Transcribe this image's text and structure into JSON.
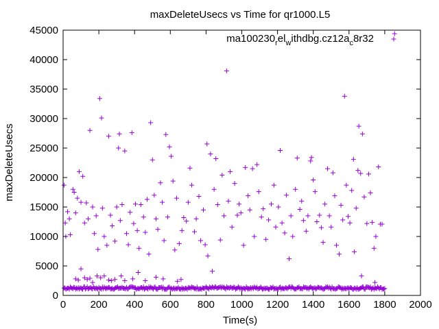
{
  "colors": {
    "series": "#9400d3",
    "axis": "#000000",
    "background": "#ffffff"
  },
  "chart_data": {
    "type": "scatter",
    "title": "maxDeleteUsecs vs Time for qr1000.L5",
    "xlabel": "Time(s)",
    "ylabel": "maxDeleteUsecs",
    "xlim": [
      0,
      2000
    ],
    "ylim": [
      0,
      45000
    ],
    "x_ticks": [
      "0",
      "200",
      "400",
      "600",
      "800",
      "1000",
      "1200",
      "1400",
      "1600",
      "1800",
      "2000"
    ],
    "y_ticks": [
      "0",
      "5000",
      "10000",
      "15000",
      "20000",
      "25000",
      "30000",
      "35000",
      "40000",
      "45000"
    ],
    "grid": false,
    "legend_position": "top-right",
    "series": [
      {
        "name": "ma100230_rel_withdbg.cz12a_c8r32",
        "name_parts": {
          "base1": "ma100230",
          "sub1": "r",
          "mid": "el",
          "sup1": "w",
          "mid2": "ithdbg.cz12a",
          "sub2": "c",
          "end": "8r32"
        },
        "marker": "+",
        "baseline": {
          "x_start": 5,
          "x_end": 1800,
          "x_step": 5,
          "y_base": 1250,
          "y_range": 450
        },
        "points": [
          {
            "x": 5,
            "y": 18700
          },
          {
            "x": 12,
            "y": 12300
          },
          {
            "x": 15,
            "y": 10000
          },
          {
            "x": 25,
            "y": 14200
          },
          {
            "x": 35,
            "y": 13000
          },
          {
            "x": 40,
            "y": 10300
          },
          {
            "x": 55,
            "y": 18000
          },
          {
            "x": 62,
            "y": 17500
          },
          {
            "x": 70,
            "y": 14000
          },
          {
            "x": 80,
            "y": 16500
          },
          {
            "x": 90,
            "y": 21000
          },
          {
            "x": 100,
            "y": 15800
          },
          {
            "x": 110,
            "y": 20200
          },
          {
            "x": 120,
            "y": 12300
          },
          {
            "x": 130,
            "y": 15700
          },
          {
            "x": 140,
            "y": 13000
          },
          {
            "x": 150,
            "y": 28000
          },
          {
            "x": 165,
            "y": 15000
          },
          {
            "x": 175,
            "y": 10500
          },
          {
            "x": 185,
            "y": 13500
          },
          {
            "x": 195,
            "y": 7800
          },
          {
            "x": 205,
            "y": 33400
          },
          {
            "x": 215,
            "y": 30100
          },
          {
            "x": 220,
            "y": 14800
          },
          {
            "x": 230,
            "y": 10000
          },
          {
            "x": 245,
            "y": 8500
          },
          {
            "x": 255,
            "y": 27000
          },
          {
            "x": 265,
            "y": 13600
          },
          {
            "x": 275,
            "y": 11800
          },
          {
            "x": 290,
            "y": 9200
          },
          {
            "x": 300,
            "y": 15000
          },
          {
            "x": 310,
            "y": 25000
          },
          {
            "x": 315,
            "y": 27400
          },
          {
            "x": 320,
            "y": 12700
          },
          {
            "x": 330,
            "y": 15400
          },
          {
            "x": 345,
            "y": 24500
          },
          {
            "x": 355,
            "y": 10500
          },
          {
            "x": 365,
            "y": 8600
          },
          {
            "x": 375,
            "y": 14100
          },
          {
            "x": 385,
            "y": 27600
          },
          {
            "x": 395,
            "y": 12200
          },
          {
            "x": 405,
            "y": 15500
          },
          {
            "x": 415,
            "y": 11000
          },
          {
            "x": 425,
            "y": 8000
          },
          {
            "x": 435,
            "y": 15400
          },
          {
            "x": 450,
            "y": 13300
          },
          {
            "x": 460,
            "y": 10700
          },
          {
            "x": 470,
            "y": 16300
          },
          {
            "x": 480,
            "y": 7000
          },
          {
            "x": 490,
            "y": 29300
          },
          {
            "x": 500,
            "y": 23000
          },
          {
            "x": 510,
            "y": 17000
          },
          {
            "x": 520,
            "y": 13000
          },
          {
            "x": 530,
            "y": 11200
          },
          {
            "x": 545,
            "y": 19100
          },
          {
            "x": 555,
            "y": 15800
          },
          {
            "x": 565,
            "y": 9300
          },
          {
            "x": 575,
            "y": 27300
          },
          {
            "x": 585,
            "y": 13300
          },
          {
            "x": 595,
            "y": 25200
          },
          {
            "x": 605,
            "y": 23600
          },
          {
            "x": 615,
            "y": 19400
          },
          {
            "x": 625,
            "y": 7700
          },
          {
            "x": 635,
            "y": 16500
          },
          {
            "x": 650,
            "y": 8800
          },
          {
            "x": 665,
            "y": 11000
          },
          {
            "x": 675,
            "y": 13200
          },
          {
            "x": 690,
            "y": 12600
          },
          {
            "x": 700,
            "y": 15800
          },
          {
            "x": 710,
            "y": 21600
          },
          {
            "x": 720,
            "y": 18700
          },
          {
            "x": 735,
            "y": 10800
          },
          {
            "x": 745,
            "y": 13000
          },
          {
            "x": 760,
            "y": 16800
          },
          {
            "x": 770,
            "y": 9300
          },
          {
            "x": 785,
            "y": 14500
          },
          {
            "x": 795,
            "y": 8600
          },
          {
            "x": 805,
            "y": 25700
          },
          {
            "x": 810,
            "y": 6700
          },
          {
            "x": 825,
            "y": 24000
          },
          {
            "x": 835,
            "y": 4100
          },
          {
            "x": 845,
            "y": 18000
          },
          {
            "x": 855,
            "y": 23200
          },
          {
            "x": 865,
            "y": 15400
          },
          {
            "x": 880,
            "y": 9400
          },
          {
            "x": 890,
            "y": 20400
          },
          {
            "x": 900,
            "y": 13500
          },
          {
            "x": 915,
            "y": 38100
          },
          {
            "x": 925,
            "y": 16000
          },
          {
            "x": 935,
            "y": 21000
          },
          {
            "x": 945,
            "y": 11600
          },
          {
            "x": 960,
            "y": 19000
          },
          {
            "x": 975,
            "y": 13600
          },
          {
            "x": 985,
            "y": 15500
          },
          {
            "x": 995,
            "y": 14000
          },
          {
            "x": 1010,
            "y": 8500
          },
          {
            "x": 1020,
            "y": 21700
          },
          {
            "x": 1035,
            "y": 16900
          },
          {
            "x": 1045,
            "y": 14500
          },
          {
            "x": 1060,
            "y": 21500
          },
          {
            "x": 1070,
            "y": 10000
          },
          {
            "x": 1085,
            "y": 22200
          },
          {
            "x": 1095,
            "y": 17600
          },
          {
            "x": 1110,
            "y": 13300
          },
          {
            "x": 1120,
            "y": 14700
          },
          {
            "x": 1135,
            "y": 9500
          },
          {
            "x": 1150,
            "y": 12800
          },
          {
            "x": 1165,
            "y": 15500
          },
          {
            "x": 1180,
            "y": 18700
          },
          {
            "x": 1190,
            "y": 11600
          },
          {
            "x": 1205,
            "y": 15000
          },
          {
            "x": 1215,
            "y": 24600
          },
          {
            "x": 1225,
            "y": 12300
          },
          {
            "x": 1240,
            "y": 10600
          },
          {
            "x": 1250,
            "y": 17000
          },
          {
            "x": 1265,
            "y": 6200
          },
          {
            "x": 1275,
            "y": 13500
          },
          {
            "x": 1285,
            "y": 10000
          },
          {
            "x": 1300,
            "y": 18000
          },
          {
            "x": 1310,
            "y": 23300
          },
          {
            "x": 1325,
            "y": 14600
          },
          {
            "x": 1335,
            "y": 16000
          },
          {
            "x": 1345,
            "y": 12700
          },
          {
            "x": 1360,
            "y": 10900
          },
          {
            "x": 1370,
            "y": 13500
          },
          {
            "x": 1385,
            "y": 22800
          },
          {
            "x": 1390,
            "y": 23400
          },
          {
            "x": 1400,
            "y": 19600
          },
          {
            "x": 1410,
            "y": 17600
          },
          {
            "x": 1420,
            "y": 12500
          },
          {
            "x": 1435,
            "y": 13600
          },
          {
            "x": 1445,
            "y": 11500
          },
          {
            "x": 1455,
            "y": 9000
          },
          {
            "x": 1465,
            "y": 15500
          },
          {
            "x": 1480,
            "y": 21500
          },
          {
            "x": 1490,
            "y": 13500
          },
          {
            "x": 1500,
            "y": 11600
          },
          {
            "x": 1510,
            "y": 20800
          },
          {
            "x": 1520,
            "y": 16900
          },
          {
            "x": 1530,
            "y": 8500
          },
          {
            "x": 1545,
            "y": 7000
          },
          {
            "x": 1555,
            "y": 15300
          },
          {
            "x": 1565,
            "y": 12800
          },
          {
            "x": 1575,
            "y": 33800
          },
          {
            "x": 1585,
            "y": 18700
          },
          {
            "x": 1595,
            "y": 13400
          },
          {
            "x": 1605,
            "y": 12300
          },
          {
            "x": 1615,
            "y": 17800
          },
          {
            "x": 1625,
            "y": 23100
          },
          {
            "x": 1630,
            "y": 7400
          },
          {
            "x": 1640,
            "y": 14800
          },
          {
            "x": 1650,
            "y": 21200
          },
          {
            "x": 1655,
            "y": 28700
          },
          {
            "x": 1665,
            "y": 20700
          },
          {
            "x": 1675,
            "y": 27400
          },
          {
            "x": 1685,
            "y": 16700
          },
          {
            "x": 1700,
            "y": 12200
          },
          {
            "x": 1710,
            "y": 20600
          },
          {
            "x": 1720,
            "y": 17400
          },
          {
            "x": 1730,
            "y": 12400
          },
          {
            "x": 1740,
            "y": 8000
          },
          {
            "x": 1750,
            "y": 10000
          },
          {
            "x": 1765,
            "y": 21800
          },
          {
            "x": 1775,
            "y": 12100
          },
          {
            "x": 1785,
            "y": 12100
          },
          {
            "x": 70,
            "y": 2800
          },
          {
            "x": 85,
            "y": 2600
          },
          {
            "x": 100,
            "y": 4500
          },
          {
            "x": 120,
            "y": 3000
          },
          {
            "x": 135,
            "y": 2700
          },
          {
            "x": 150,
            "y": 2900
          },
          {
            "x": 165,
            "y": 2200
          },
          {
            "x": 190,
            "y": 3300
          },
          {
            "x": 210,
            "y": 3000
          },
          {
            "x": 230,
            "y": 3300
          },
          {
            "x": 255,
            "y": 2600
          },
          {
            "x": 270,
            "y": 2500
          },
          {
            "x": 290,
            "y": 2700
          },
          {
            "x": 325,
            "y": 3300
          },
          {
            "x": 345,
            "y": 2500
          },
          {
            "x": 390,
            "y": 2800
          },
          {
            "x": 420,
            "y": 3900
          },
          {
            "x": 460,
            "y": 2500
          },
          {
            "x": 520,
            "y": 3100
          },
          {
            "x": 560,
            "y": 2800
          },
          {
            "x": 640,
            "y": 2400
          },
          {
            "x": 660,
            "y": 2700
          },
          {
            "x": 1670,
            "y": 3300
          },
          {
            "x": 1745,
            "y": 2200
          },
          {
            "x": 1855,
            "y": 44400
          }
        ]
      }
    ]
  }
}
